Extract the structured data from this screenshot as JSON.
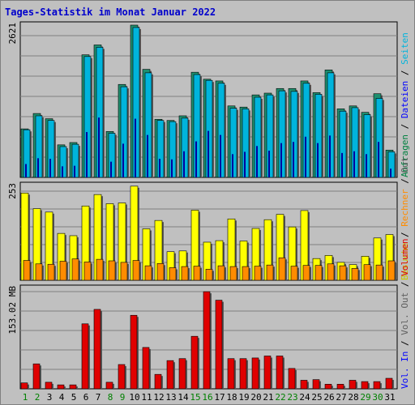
{
  "title": "Tages-Statistik im Monat Januar 2022",
  "colors": {
    "background": "#c0c0c0",
    "title": "#0000cc",
    "anfragen": "#1f8f6f",
    "dateien": "#00b4dc",
    "seiten": "#0000a0",
    "besuche": "#ffff00",
    "rechner": "#ff8c00",
    "volumen": "#e00000",
    "weekday_label": "#000000",
    "weekend_label": "#008000"
  },
  "legend_panel1": [
    {
      "text": "Anfragen",
      "color": "#008040"
    },
    {
      "text": "Dateien",
      "color": "#0000ff"
    },
    {
      "text": "Seiten",
      "color": "#00b4dc"
    }
  ],
  "legend_panel2": [
    {
      "text": "Besuche",
      "color": "#c8c800"
    },
    {
      "text": "Rechner",
      "color": "#ff8c00"
    },
    {
      "text": "Out",
      "color": "#606060"
    }
  ],
  "legend_panel3": [
    {
      "text": "Vol. In",
      "color": "#0000ff"
    },
    {
      "text": "Vol. Out",
      "color": "#606060"
    },
    {
      "text": "Volumen",
      "color": "#e00000"
    }
  ],
  "chart_data": [
    {
      "type": "bar",
      "categories": [
        "1",
        "2",
        "3",
        "4",
        "5",
        "6",
        "7",
        "8",
        "9",
        "10",
        "11",
        "12",
        "13",
        "14",
        "15",
        "16",
        "17",
        "18",
        "19",
        "20",
        "21",
        "22",
        "23",
        "24",
        "25",
        "26",
        "27",
        "28",
        "29",
        "30",
        "31"
      ],
      "weekend_days": [
        "1",
        "2",
        "8",
        "9",
        "15",
        "16",
        "22",
        "23",
        "29",
        "30"
      ],
      "ylabel": "2621",
      "ylim": [
        0,
        2621
      ],
      "series": [
        {
          "name": "Anfragen",
          "values": [
            835,
            1100,
            1010,
            560,
            600,
            2110,
            2280,
            790,
            1600,
            2621,
            1860,
            1000,
            980,
            1060,
            1810,
            1690,
            1660,
            1230,
            1210,
            1420,
            1450,
            1530,
            1530,
            1660,
            1460,
            1850,
            1180,
            1230,
            1120,
            1440,
            470
          ]
        },
        {
          "name": "Dateien",
          "values": [
            820,
            1060,
            980,
            530,
            570,
            2080,
            2240,
            760,
            1560,
            2580,
            1800,
            980,
            960,
            1020,
            1770,
            1670,
            1620,
            1190,
            1180,
            1380,
            1420,
            1490,
            1480,
            1620,
            1430,
            1800,
            1140,
            1200,
            1080,
            1360,
            440
          ]
        },
        {
          "name": "Seiten",
          "values": [
            230,
            330,
            320,
            190,
            200,
            780,
            1030,
            270,
            580,
            1010,
            730,
            320,
            310,
            450,
            620,
            800,
            730,
            400,
            440,
            540,
            460,
            590,
            610,
            700,
            590,
            720,
            420,
            450,
            400,
            610,
            150
          ]
        }
      ]
    },
    {
      "type": "bar",
      "categories": [
        "1",
        "2",
        "3",
        "4",
        "5",
        "6",
        "7",
        "8",
        "9",
        "10",
        "11",
        "12",
        "13",
        "14",
        "15",
        "16",
        "17",
        "18",
        "19",
        "20",
        "21",
        "22",
        "23",
        "24",
        "25",
        "26",
        "27",
        "28",
        "29",
        "30",
        "31"
      ],
      "ylabel": "253",
      "ylim": [
        0,
        253
      ],
      "series": [
        {
          "name": "Besuche",
          "values": [
            229,
            188,
            179,
            123,
            117,
            195,
            225,
            201,
            203,
            247,
            135,
            157,
            75,
            77,
            184,
            100,
            104,
            161,
            103,
            136,
            159,
            173,
            140,
            183,
            57,
            65,
            47,
            41,
            63,
            111,
            120
          ]
        },
        {
          "name": "Rechner",
          "values": [
            52,
            43,
            42,
            50,
            56,
            48,
            55,
            51,
            47,
            52,
            38,
            44,
            33,
            36,
            37,
            29,
            38,
            36,
            36,
            37,
            40,
            59,
            37,
            39,
            39,
            43,
            38,
            31,
            41,
            40,
            51
          ]
        }
      ]
    },
    {
      "type": "bar",
      "categories": [
        "1",
        "2",
        "3",
        "4",
        "5",
        "6",
        "7",
        "8",
        "9",
        "10",
        "11",
        "12",
        "13",
        "14",
        "15",
        "16",
        "17",
        "18",
        "19",
        "20",
        "21",
        "22",
        "23",
        "24",
        "25",
        "26",
        "27",
        "28",
        "29",
        "30",
        "31"
      ],
      "ylabel": "153.02 MB",
      "ylim": [
        0,
        153.02
      ],
      "series": [
        {
          "name": "Volumen",
          "values": [
            9,
            38,
            10,
            6,
            6,
            99,
            121,
            10,
            37,
            112,
            63,
            22,
            43,
            46,
            80,
            148,
            135,
            46,
            46,
            47,
            50,
            50,
            31,
            13,
            14,
            7,
            7,
            13,
            11,
            11,
            16
          ]
        }
      ]
    }
  ]
}
